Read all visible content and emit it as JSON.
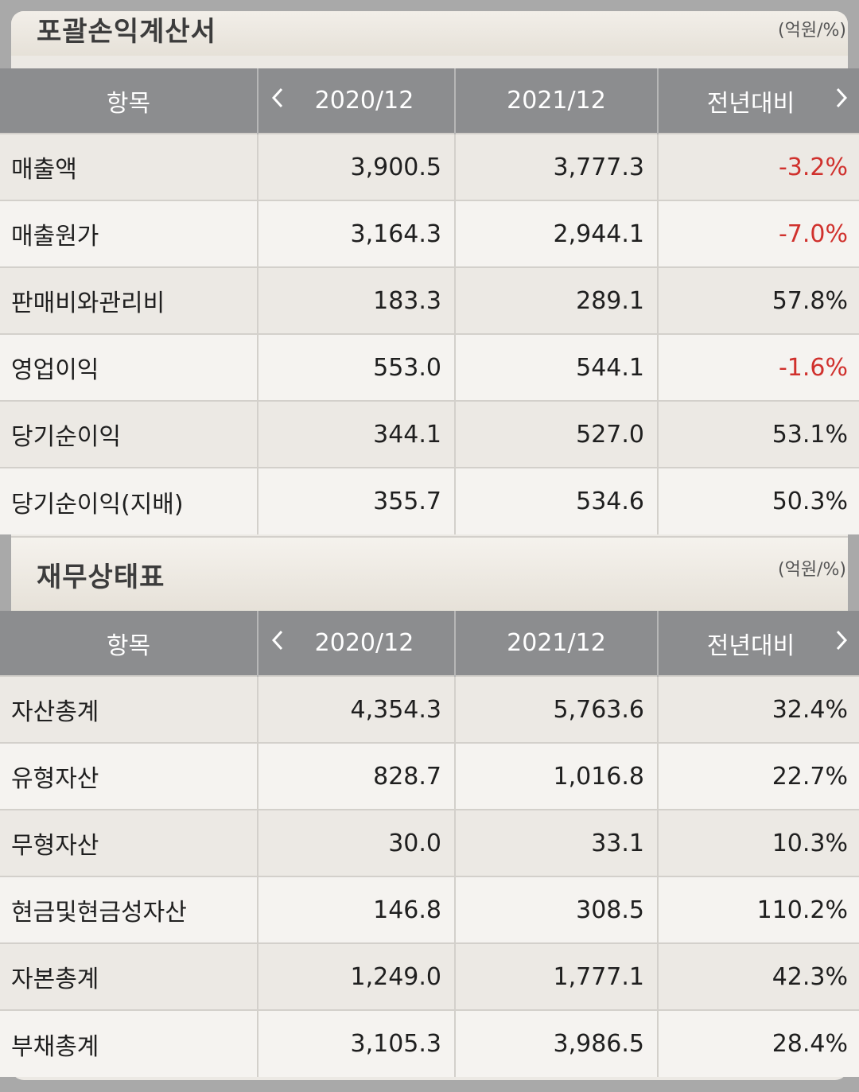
{
  "income": {
    "title": "포괄손익계산서",
    "unit": "(억원/%)",
    "headers": {
      "item": "항목",
      "y1": "2020/12",
      "y2": "2021/12",
      "change": "전년대비"
    },
    "rows": [
      {
        "label": "매출액",
        "y2020": "3,900.5",
        "y2021": "3,777.3",
        "change": "-3.2%"
      },
      {
        "label": "매출원가",
        "y2020": "3,164.3",
        "y2021": "2,944.1",
        "change": "-7.0%"
      },
      {
        "label": "판매비와관리비",
        "y2020": "183.3",
        "y2021": "289.1",
        "change": "57.8%"
      },
      {
        "label": "영업이익",
        "y2020": "553.0",
        "y2021": "544.1",
        "change": "-1.6%"
      },
      {
        "label": "당기순이익",
        "y2020": "344.1",
        "y2021": "527.0",
        "change": "53.1%"
      },
      {
        "label": "당기순이익(지배)",
        "y2020": "355.7",
        "y2021": "534.6",
        "change": "50.3%"
      }
    ]
  },
  "balance": {
    "title": "재무상태표",
    "unit": "(억원/%)",
    "headers": {
      "item": "항목",
      "y1": "2020/12",
      "y2": "2021/12",
      "change": "전년대비"
    },
    "rows": [
      {
        "label": "자산총계",
        "y2020": "4,354.3",
        "y2021": "5,763.6",
        "change": "32.4%"
      },
      {
        "label": "유형자산",
        "y2020": "828.7",
        "y2021": "1,016.8",
        "change": "22.7%"
      },
      {
        "label": "무형자산",
        "y2020": "30.0",
        "y2021": "33.1",
        "change": "10.3%"
      },
      {
        "label": "현금및현금성자산",
        "y2020": "146.8",
        "y2021": "308.5",
        "change": "110.2%"
      },
      {
        "label": "자본총계",
        "y2020": "1,249.0",
        "y2021": "1,777.1",
        "change": "42.3%"
      },
      {
        "label": "부채총계",
        "y2020": "3,105.3",
        "y2021": "3,986.5",
        "change": "28.4%"
      }
    ]
  },
  "icons": {
    "prev": "chevron-left-icon",
    "next": "chevron-right-icon"
  },
  "colors": {
    "negative": "#d0312d",
    "header_bg": "#8c8d8f"
  }
}
